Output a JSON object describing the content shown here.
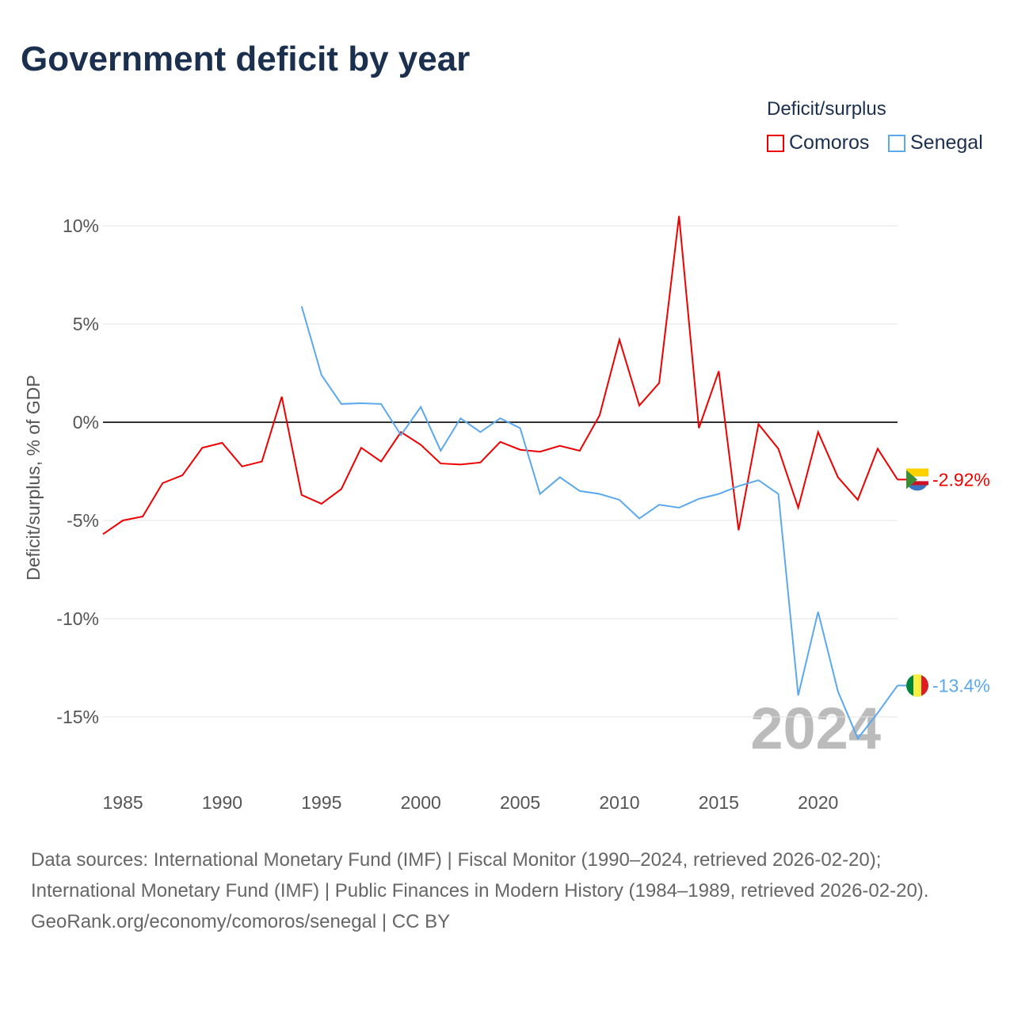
{
  "chart_data": {
    "type": "line",
    "title": "Government deficit by year",
    "ylabel": "Deficit/surplus, % of GDP",
    "xlabel": "",
    "xlim": [
      1984,
      2024
    ],
    "ylim": [
      -17.5,
      12
    ],
    "yticks": [
      10,
      5,
      0,
      -5,
      -10,
      -15
    ],
    "ytick_labels": [
      "10%",
      "5%",
      "0%",
      "-5%",
      "-10%",
      "-15%"
    ],
    "xticks": [
      1985,
      1990,
      1995,
      2000,
      2005,
      2010,
      2015,
      2020
    ],
    "xtick_labels": [
      "1985",
      "1990",
      "1995",
      "2000",
      "2005",
      "2010",
      "2015",
      "2020"
    ],
    "legend_title": "Deficit/surplus",
    "legend_position": "top-right",
    "year_watermark": "2024",
    "series": [
      {
        "name": "Comoros",
        "color": "#ee0000",
        "end_label": "-2.92%",
        "start_year": 1984,
        "values": [
          -5.7,
          -5.0,
          -4.8,
          -3.1,
          -2.7,
          -1.3,
          -1.05,
          -2.25,
          -2.0,
          1.3,
          -3.7,
          -4.15,
          -3.4,
          -1.3,
          -2.0,
          -0.5,
          -1.15,
          -2.1,
          -2.15,
          -2.05,
          -1.0,
          -1.4,
          -1.5,
          -1.2,
          -1.45,
          0.35,
          4.2,
          0.85,
          2.0,
          10.5,
          -0.3,
          2.6,
          -5.5,
          -0.1,
          -1.35,
          -4.35,
          -0.5,
          -2.8,
          -3.95,
          -1.35,
          -2.92
        ]
      },
      {
        "name": "Senegal",
        "color": "#5ba8ec",
        "end_label": "-13.4%",
        "start_year": 1994,
        "values": [
          5.9,
          2.4,
          0.93,
          0.97,
          0.93,
          -0.65,
          0.78,
          -1.45,
          0.2,
          -0.5,
          0.2,
          -0.3,
          -3.65,
          -2.8,
          -3.5,
          -3.65,
          -3.95,
          -4.9,
          -4.2,
          -4.35,
          -3.9,
          -3.65,
          -3.25,
          -2.95,
          -3.65,
          -13.9,
          -9.65,
          -13.7,
          -16.1,
          -14.8,
          -13.4
        ]
      }
    ]
  },
  "source": {
    "line1": "Data sources: International Monetary Fund (IMF) | Fiscal Monitor (1990–2024, retrieved 2026-02-20); International Monetary Fund (IMF) | Public Finances in Modern History (1984–1989, retrieved 2026-02-20).",
    "line2": "GeoRank.org/economy/comoros/senegal | CC BY"
  }
}
